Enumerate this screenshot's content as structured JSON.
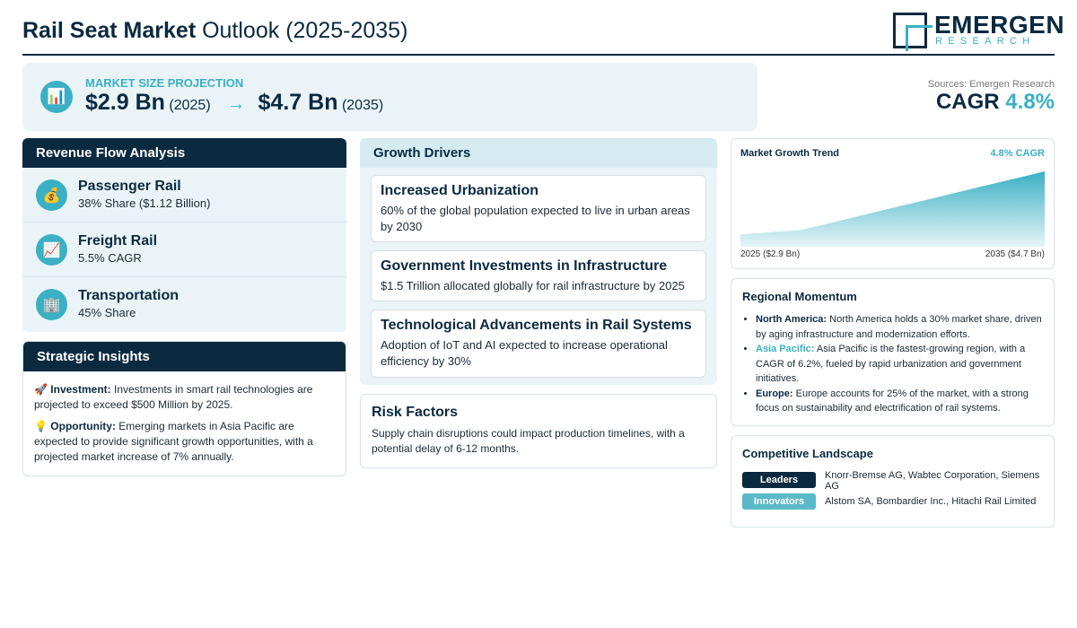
{
  "header": {
    "title_bold": "Rail Seat Market",
    "title_rest": " Outlook (2025-2035)",
    "logo_name": "EMERGEN",
    "logo_sub": "RESEARCH"
  },
  "projection": {
    "label": "MARKET SIZE PROJECTION",
    "icon": "chart-icon",
    "start_value": "$2.9 Bn",
    "start_year": "(2025)",
    "arrow": "→",
    "end_value": "$4.7 Bn",
    "end_year": "(2035)"
  },
  "sources": "Sources: Emergen Research",
  "cagr": {
    "label": "CAGR",
    "value": "4.8%"
  },
  "revenue": {
    "title": "Revenue Flow Analysis",
    "items": [
      {
        "icon": "money-bag-icon",
        "name": "Passenger Rail",
        "sub": "38% Share ($1.12 Billion)"
      },
      {
        "icon": "trend-up-icon",
        "name": "Freight Rail",
        "sub": "5.5% CAGR"
      },
      {
        "icon": "building-icon",
        "name": "Transportation",
        "sub": "45% Share"
      }
    ]
  },
  "strategic": {
    "title": "Strategic Insights",
    "items": [
      {
        "icon": "rocket-icon",
        "label": "Investment:",
        "text": " Investments in smart rail technologies are projected to exceed $500 Million by 2025."
      },
      {
        "icon": "lightbulb-icon",
        "label": "Opportunity:",
        "text": " Emerging markets in Asia Pacific are expected to provide significant growth opportunities, with a projected market increase of 7% annually."
      }
    ]
  },
  "drivers": {
    "title": "Growth Drivers",
    "items": [
      {
        "title": "Increased Urbanization",
        "text": "60% of the global population expected to live in urban areas by 2030"
      },
      {
        "title": "Government Investments in Infrastructure",
        "text": "$1.5 Trillion allocated globally for rail infrastructure by 2025"
      },
      {
        "title": "Technological Advancements in Rail Systems",
        "text": "Adoption of IoT and AI expected to increase operational efficiency by 30%"
      }
    ]
  },
  "risk": {
    "title": "Risk Factors",
    "text": "Supply chain disruptions could impact production timelines, with a potential delay of 6-12 months."
  },
  "trend": {
    "title": "Market Growth Trend",
    "cagr": "4.8% CAGR",
    "start_label": "2025 ($2.9 Bn)",
    "end_label": "2035 ($4.7 Bn)",
    "colors": {
      "fill_top": "#3ab0c4",
      "fill_bottom": "#e6f4f7"
    }
  },
  "chart_data": {
    "type": "area",
    "x": [
      2025,
      2035
    ],
    "values": [
      2.9,
      4.7
    ],
    "title": "Market Growth Trend",
    "xlabel": "",
    "ylabel": ""
  },
  "regional": {
    "title": "Regional Momentum",
    "items": [
      {
        "region": "North America:",
        "text": " North America holds a 30% market share, driven by aging infrastructure and modernization efforts.",
        "highlight": false
      },
      {
        "region": "Asia Pacific:",
        "text": " Asia Pacific is the fastest-growing region, with a CAGR of 6.2%, fueled by rapid urbanization and government initiatives.",
        "highlight": true
      },
      {
        "region": "Europe:",
        "text": " Europe accounts for 25% of the market, with a strong focus on sustainability and electrification of rail systems.",
        "highlight": false
      }
    ]
  },
  "competitive": {
    "title": "Competitive Landscape",
    "rows": [
      {
        "badge": "Leaders",
        "text": "Knorr-Bremse AG, Wabtec Corporation, Siemens AG"
      },
      {
        "badge": "Innovators",
        "text": "Alstom SA, Bombardier Inc., Hitachi Rail Limited"
      }
    ]
  },
  "colors": {
    "navy": "#0b2a40",
    "teal": "#3ab0c4",
    "panel_bg": "#eaf4f7"
  }
}
